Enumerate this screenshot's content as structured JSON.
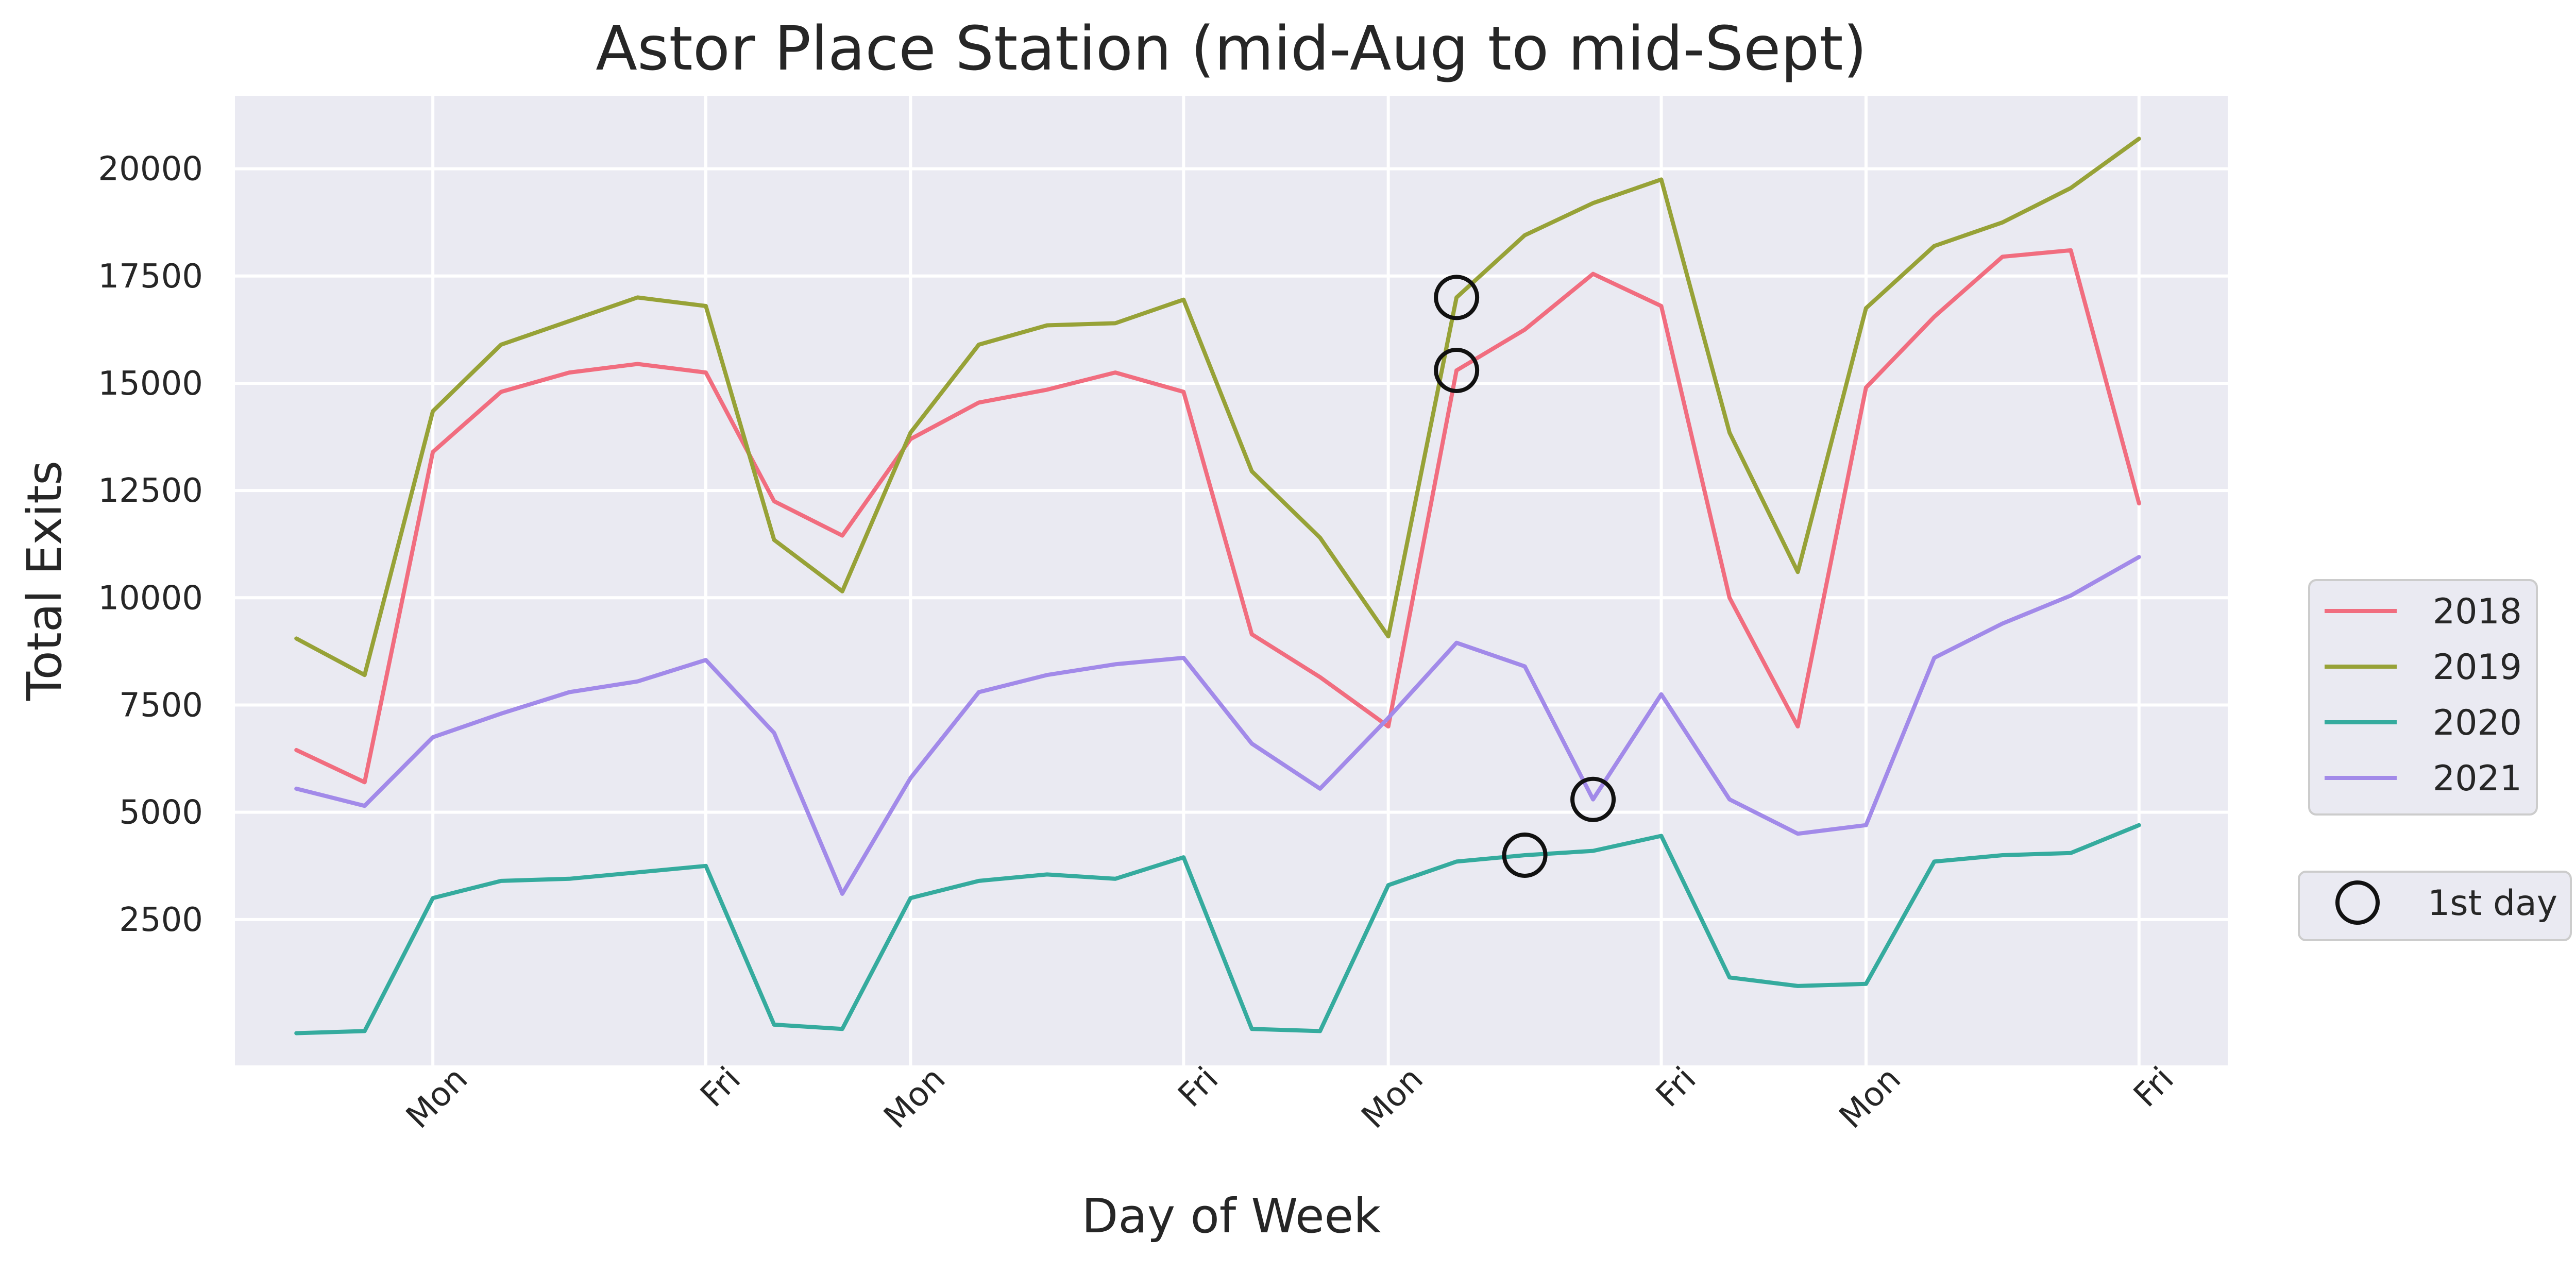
{
  "chart_data": {
    "type": "line",
    "title": "Astor Place Station (mid-Aug to mid-Sept)",
    "xlabel": "Day of Week",
    "ylabel": "Total Exits",
    "x_tick_labels": [
      {
        "x": 2,
        "label": "Mon"
      },
      {
        "x": 6,
        "label": "Fri"
      },
      {
        "x": 9,
        "label": "Mon"
      },
      {
        "x": 13,
        "label": "Fri"
      },
      {
        "x": 16,
        "label": "Mon"
      },
      {
        "x": 20,
        "label": "Fri"
      },
      {
        "x": 23,
        "label": "Mon"
      },
      {
        "x": 27,
        "label": "Fri"
      }
    ],
    "y_ticks": [
      2500,
      5000,
      7500,
      10000,
      12500,
      15000,
      17500,
      20000
    ],
    "y_tick_labels": [
      "2500",
      "5000",
      "7500",
      "10000",
      "12500",
      "15000",
      "17500",
      "20000"
    ],
    "xlim": [
      -0.9,
      28.3
    ],
    "ylim": [
      -900,
      21700
    ],
    "grid": true,
    "legend_position": "right",
    "background": "#eaeaf2",
    "series": [
      {
        "name": "2018",
        "color": "#f16d7f",
        "values": [
          6450,
          5700,
          13400,
          14800,
          15250,
          15450,
          15250,
          12250,
          11450,
          13700,
          14550,
          14850,
          15250,
          14800,
          9150,
          8150,
          7000,
          15300,
          16250,
          17550,
          16800,
          10000,
          7000,
          14900,
          16550,
          17950,
          18100,
          12200
        ]
      },
      {
        "name": "2019",
        "color": "#97a237",
        "values": [
          9050,
          8200,
          14350,
          15900,
          16450,
          17000,
          16800,
          11350,
          10150,
          13850,
          15900,
          16350,
          16400,
          16950,
          12950,
          11400,
          9100,
          17000,
          18450,
          19200,
          19750,
          13850,
          10600,
          16750,
          18200,
          18750,
          19550,
          20700
        ]
      },
      {
        "name": "2020",
        "color": "#35ab9e",
        "values": [
          -150,
          -100,
          3000,
          3400,
          3450,
          3600,
          3750,
          50,
          -50,
          3000,
          3400,
          3550,
          3450,
          3950,
          -50,
          -100,
          3300,
          3850,
          4000,
          4100,
          4450,
          1150,
          950,
          1000,
          3850,
          4000,
          4050,
          4700
        ]
      },
      {
        "name": "2021",
        "color": "#a28ae9",
        "values": [
          5550,
          5150,
          6750,
          7300,
          7800,
          8050,
          8550,
          6850,
          3100,
          5800,
          7800,
          8200,
          8450,
          8600,
          6600,
          5550,
          7200,
          8950,
          8400,
          5300,
          7750,
          5300,
          4500,
          4700,
          8600,
          9400,
          10050,
          10950
        ]
      }
    ],
    "first_day_markers": [
      {
        "x": 17,
        "y": 17000
      },
      {
        "x": 17,
        "y": 15300
      },
      {
        "x": 19,
        "y": 5300
      },
      {
        "x": 18,
        "y": 4000
      }
    ],
    "marker_legend_label": "1st day"
  }
}
